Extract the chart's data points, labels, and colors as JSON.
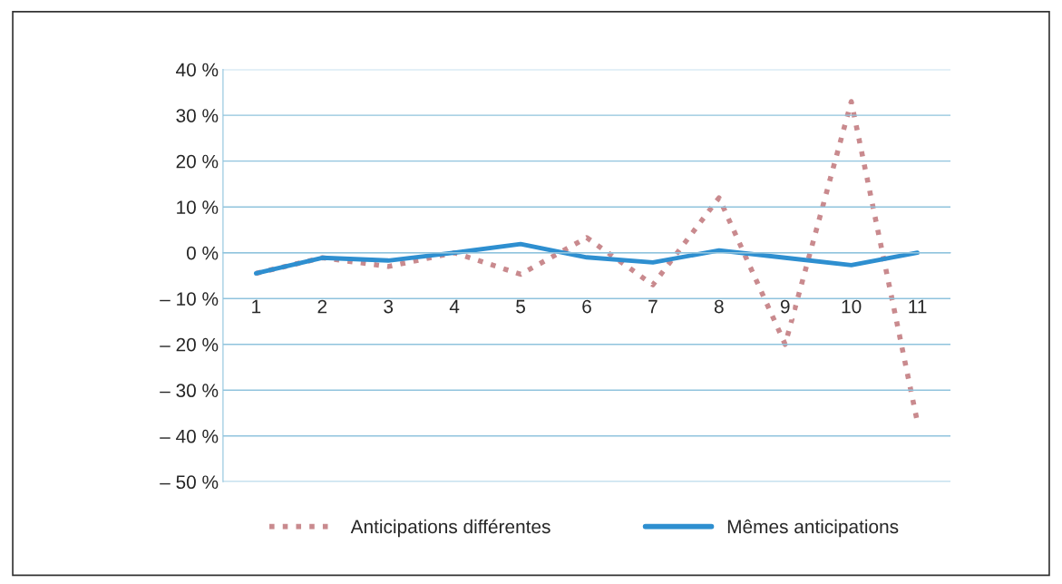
{
  "chart_data": {
    "type": "line",
    "categories": [
      "1",
      "2",
      "3",
      "4",
      "5",
      "6",
      "7",
      "8",
      "9",
      "10",
      "11"
    ],
    "series": [
      {
        "name": "Anticipations différentes",
        "color": "#c98a8e",
        "line_style": "dotted",
        "values": [
          -4.5,
          -1.1,
          -3,
          0,
          -4.7,
          3.3,
          -7,
          12,
          -20,
          33,
          -37
        ]
      },
      {
        "name": "Mêmes anticipations",
        "color": "#2e8fd0",
        "line_style": "solid",
        "values": [
          -4.5,
          -1.1,
          -1.7,
          0,
          1.9,
          -1,
          -2.1,
          0.5,
          -1.1,
          -2.7,
          0
        ]
      }
    ],
    "ylim": [
      -50,
      40
    ],
    "yticks": [
      {
        "value": -50,
        "label": "– 50 %"
      },
      {
        "value": -40,
        "label": "– 40 %"
      },
      {
        "value": -30,
        "label": "– 30 %"
      },
      {
        "value": -20,
        "label": "– 20 %"
      },
      {
        "value": -10,
        "label": "– 10 %"
      },
      {
        "value": 0,
        "label": "0 %"
      },
      {
        "value": 10,
        "label": "10 %"
      },
      {
        "value": 20,
        "label": "20 %"
      },
      {
        "value": 30,
        "label": "30 %"
      },
      {
        "value": 40,
        "label": "40 %"
      }
    ],
    "grid": "y",
    "legend": "bottom",
    "marker": "none"
  }
}
